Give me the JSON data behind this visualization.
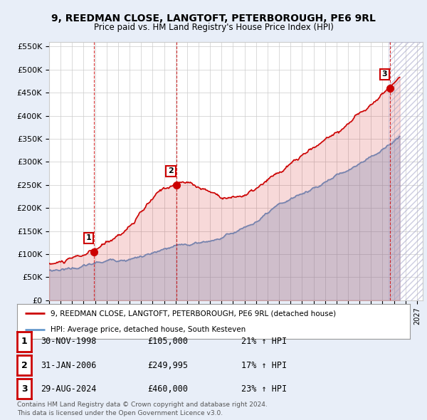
{
  "title": "9, REEDMAN CLOSE, LANGTOFT, PETERBOROUGH, PE6 9RL",
  "subtitle": "Price paid vs. HM Land Registry's House Price Index (HPI)",
  "ylim": [
    0,
    560000
  ],
  "xlim_start": 1995.0,
  "xlim_end": 2027.5,
  "sale_dates": [
    1998.917,
    2006.083,
    2024.667
  ],
  "sale_prices": [
    105000,
    249995,
    460000
  ],
  "sale_labels": [
    "1",
    "2",
    "3"
  ],
  "hpi_red_color": "#cc0000",
  "hpi_blue_color": "#6699cc",
  "bg_color": "#e8eef8",
  "plot_bg": "#ffffff",
  "legend_entries": [
    "9, REEDMAN CLOSE, LANGTOFT, PETERBOROUGH, PE6 9RL (detached house)",
    "HPI: Average price, detached house, South Kesteven"
  ],
  "table_rows": [
    [
      "1",
      "30-NOV-1998",
      "£105,000",
      "21% ↑ HPI"
    ],
    [
      "2",
      "31-JAN-2006",
      "£249,995",
      "17% ↑ HPI"
    ],
    [
      "3",
      "29-AUG-2024",
      "£460,000",
      "23% ↑ HPI"
    ]
  ],
  "footnote": "Contains HM Land Registry data © Crown copyright and database right 2024.\nThis data is licensed under the Open Government Licence v3.0.",
  "dashed_line_dates": [
    1998.917,
    2006.083,
    2024.667
  ],
  "hatch_start": 2024.5,
  "hatch_end": 2027.5
}
